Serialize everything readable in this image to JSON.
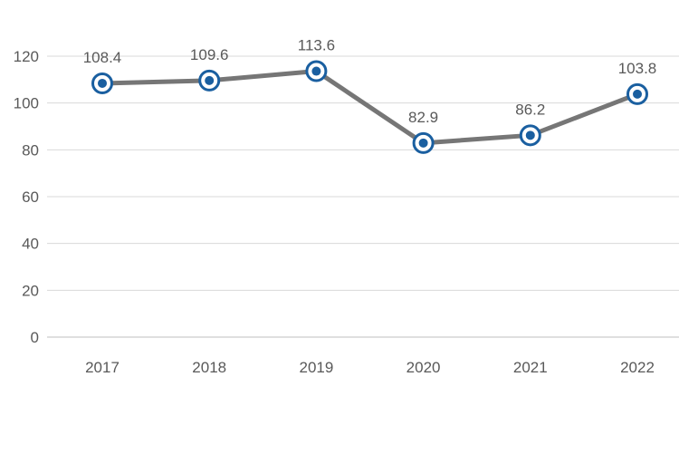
{
  "chart_data": {
    "type": "line",
    "categories": [
      "2017",
      "2018",
      "2019",
      "2020",
      "2021",
      "2022"
    ],
    "series": [
      {
        "values": [
          108.4,
          109.6,
          113.6,
          82.9,
          86.2,
          103.8
        ]
      }
    ],
    "data_labels": [
      "108.4",
      "109.6",
      "113.6",
      "82.9",
      "86.2",
      "103.8"
    ],
    "y_ticks": [
      "0",
      "20",
      "40",
      "60",
      "80",
      "100",
      "120"
    ],
    "ylim": [
      0,
      120
    ],
    "grid": true,
    "legend": "none",
    "colors": {
      "line": "#767676",
      "marker": "#1a5fa0",
      "grid": "#d9d9d9",
      "axis": "#bfbfbf",
      "text": "#595959"
    }
  }
}
